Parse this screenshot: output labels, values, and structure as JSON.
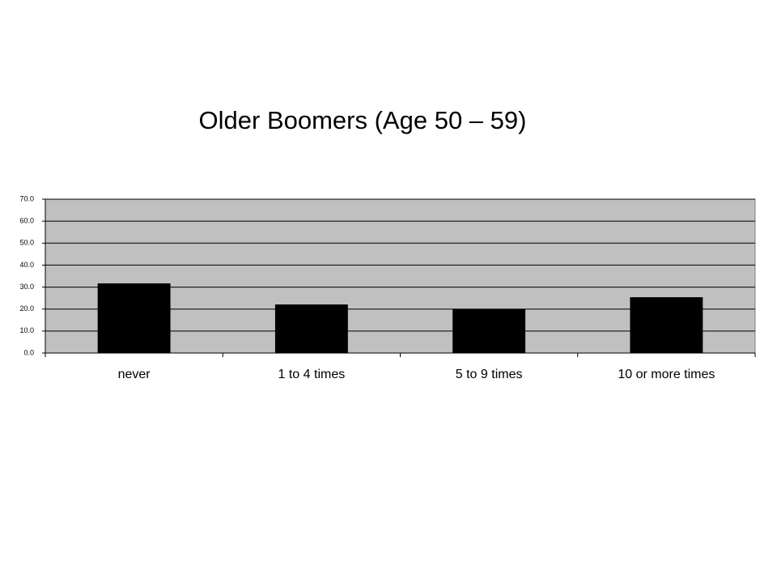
{
  "chart_data": {
    "type": "bar",
    "title": "Older Boomers (Age 50 – 59)",
    "categories": [
      "never",
      "1 to 4 times",
      "5 to 9 times",
      "10 or more times"
    ],
    "values": [
      31.7,
      22.1,
      19.9,
      25.4
    ],
    "color": "#000000",
    "ylim": [
      0,
      70
    ],
    "yticks": [
      {
        "value": 0,
        "label": "0.0"
      },
      {
        "value": 10,
        "label": "10.0"
      },
      {
        "value": 20,
        "label": "20.0"
      },
      {
        "value": 30,
        "label": "30.0"
      },
      {
        "value": 40,
        "label": "40.0"
      },
      {
        "value": 50,
        "label": "50.0"
      },
      {
        "value": 60,
        "label": "60.0"
      },
      {
        "value": 70,
        "label": "70.0"
      }
    ],
    "grid": true
  }
}
